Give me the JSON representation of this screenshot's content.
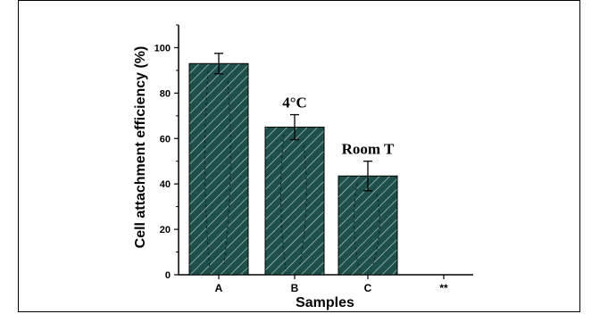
{
  "chart_data": {
    "type": "bar",
    "title": "",
    "xlabel": "Samples",
    "ylabel": "Cell attachment efficiency (%)",
    "ylim": [
      0,
      110
    ],
    "yticks": [
      "0",
      "20",
      "40",
      "60",
      "80",
      "100"
    ],
    "categories": [
      "A",
      "B",
      "C",
      "**"
    ],
    "values": [
      93,
      65,
      43.5,
      0
    ],
    "errors": [
      4.5,
      5.5,
      6.5,
      0
    ],
    "annotations": [
      "",
      "4°C",
      "Room T",
      ""
    ],
    "grid": false,
    "legend": "none",
    "bar_color": "#1f4f4a",
    "hatch_color": "#c9d9d6"
  }
}
